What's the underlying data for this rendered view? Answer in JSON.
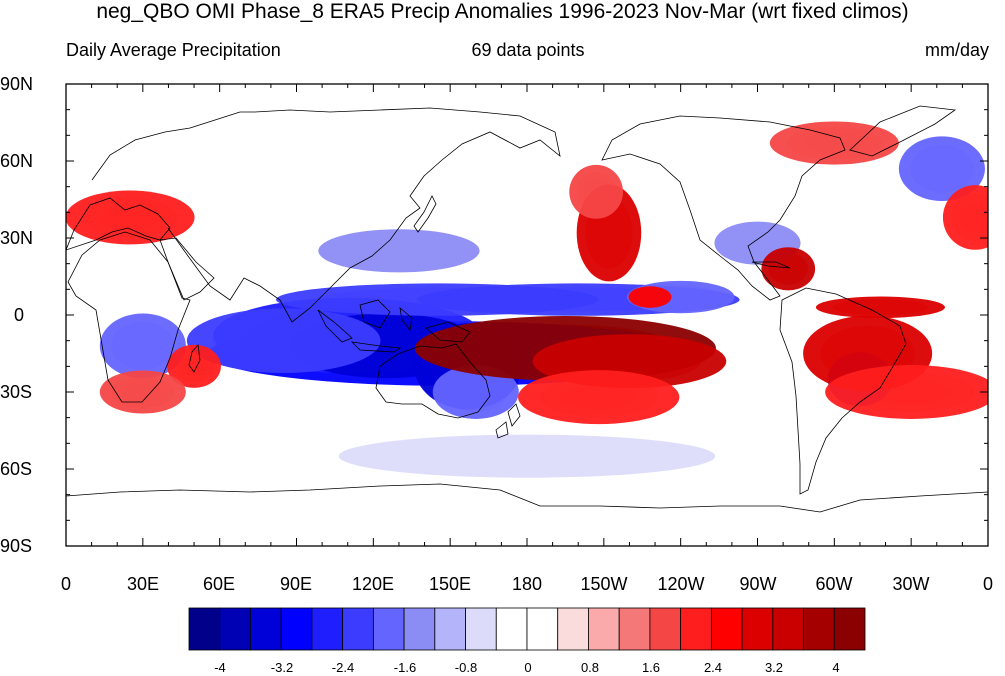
{
  "title": "neg_QBO OMI Phase_8 ERA5 Precip Anomalies 1996-2023 Nov-Mar (wrt fixed climos)",
  "subtitle_left": "Daily Average Precipitation",
  "subtitle_center": "69 data points",
  "subtitle_right": "mm/day",
  "y_tick_labels": [
    "90N",
    "60N",
    "30N",
    "0",
    "30S",
    "60S",
    "90S"
  ],
  "x_tick_labels": [
    "0",
    "30E",
    "60E",
    "90E",
    "120E",
    "150E",
    "180",
    "150W",
    "120W",
    "90W",
    "60W",
    "30W",
    "0"
  ],
  "colorbar": {
    "labels": [
      "-4",
      "-3.2",
      "-2.4",
      "-1.6",
      "-0.8",
      "0",
      "0.8",
      "1.6",
      "2.4",
      "3.2",
      "4"
    ],
    "colors": [
      "#00008b",
      "#0000b4",
      "#0000d8",
      "#0000ff",
      "#1e1eff",
      "#3c3cff",
      "#6464ff",
      "#8c8cf5",
      "#b4b4fa",
      "#dcdcfa",
      "#ffffff",
      "#ffffff",
      "#fadcdc",
      "#faaaaa",
      "#f57878",
      "#f54646",
      "#ff1e1e",
      "#ff0000",
      "#dc0000",
      "#c80000",
      "#a50000",
      "#8b0000"
    ]
  },
  "chart_data": {
    "type": "heatmap",
    "map_type": "global equirectangular map with coastlines, filled precipitation anomaly contours",
    "lon_range": [
      0,
      360
    ],
    "lat_range": [
      -90,
      90
    ],
    "units": "mm/day",
    "contour_levels": [
      -4,
      -3.6,
      -3.2,
      -2.8,
      -2.4,
      -2.0,
      -1.6,
      -1.2,
      -0.8,
      -0.4,
      0,
      0.4,
      0.8,
      1.2,
      1.6,
      2.0,
      2.4,
      2.8,
      3.2,
      3.6,
      4
    ],
    "anomaly_regions": [
      {
        "lon": 150,
        "lat": -15,
        "rx": 45,
        "ry": 6,
        "value": -3.2
      },
      {
        "lon": 110,
        "lat": -8,
        "rx": 25,
        "ry": 7,
        "value": -2.8
      },
      {
        "lon": 125,
        "lat": -12,
        "rx": 18,
        "ry": 6,
        "value": -3.6
      },
      {
        "lon": 85,
        "lat": -10,
        "rx": 18,
        "ry": 6,
        "value": -2.4
      },
      {
        "lon": 145,
        "lat": 6,
        "rx": 30,
        "ry": 3,
        "value": -2.4
      },
      {
        "lon": 200,
        "lat": 6,
        "rx": 30,
        "ry": 3,
        "value": -2.4
      },
      {
        "lon": 240,
        "lat": 7,
        "rx": 10,
        "ry": 3,
        "value": -2.0
      },
      {
        "lon": 157,
        "lat": -20,
        "rx": 10,
        "ry": 8,
        "value": -3.6
      },
      {
        "lon": 160,
        "lat": -30,
        "rx": 8,
        "ry": 5,
        "value": -2.0
      },
      {
        "lon": 30,
        "lat": -12,
        "rx": 8,
        "ry": 6,
        "value": -2.0
      },
      {
        "lon": 310,
        "lat": -25,
        "rx": 6,
        "ry": 5,
        "value": -2.4
      },
      {
        "lon": 342,
        "lat": 57,
        "rx": 8,
        "ry": 6,
        "value": -2.0
      },
      {
        "lon": 130,
        "lat": 25,
        "rx": 15,
        "ry": 4,
        "value": -1.6
      },
      {
        "lon": 270,
        "lat": 28,
        "rx": 8,
        "ry": 4,
        "value": -1.6
      },
      {
        "lon": 180,
        "lat": -55,
        "rx": 35,
        "ry": 4,
        "value": -0.8
      },
      {
        "lon": 195,
        "lat": -13,
        "rx": 28,
        "ry": 6,
        "value": 4.0
      },
      {
        "lon": 220,
        "lat": -18,
        "rx": 18,
        "ry": 5,
        "value": 3.2
      },
      {
        "lon": 208,
        "lat": -32,
        "rx": 15,
        "ry": 5,
        "value": 2.0
      },
      {
        "lon": 212,
        "lat": 32,
        "rx": 6,
        "ry": 9,
        "value": 2.8
      },
      {
        "lon": 207,
        "lat": 48,
        "rx": 5,
        "ry": 5,
        "value": 1.6
      },
      {
        "lon": 282,
        "lat": 18,
        "rx": 5,
        "ry": 4,
        "value": 3.2
      },
      {
        "lon": 318,
        "lat": 3,
        "rx": 12,
        "ry": 2,
        "value": 2.8
      },
      {
        "lon": 313,
        "lat": -15,
        "rx": 12,
        "ry": 7,
        "value": 2.8
      },
      {
        "lon": 330,
        "lat": -30,
        "rx": 16,
        "ry": 5,
        "value": 2.0
      },
      {
        "lon": 50,
        "lat": -20,
        "rx": 5,
        "ry": 4,
        "value": 2.0
      },
      {
        "lon": 30,
        "lat": -30,
        "rx": 8,
        "ry": 4,
        "value": 1.6
      },
      {
        "lon": 25,
        "lat": 38,
        "rx": 12,
        "ry": 5,
        "value": 2.0
      },
      {
        "lon": 300,
        "lat": 67,
        "rx": 12,
        "ry": 4,
        "value": 1.6
      },
      {
        "lon": 228,
        "lat": 7,
        "rx": 4,
        "ry": 2,
        "value": 2.4
      },
      {
        "lon": 355,
        "lat": 38,
        "rx": 6,
        "ry": 6,
        "value": 2.0
      }
    ]
  }
}
